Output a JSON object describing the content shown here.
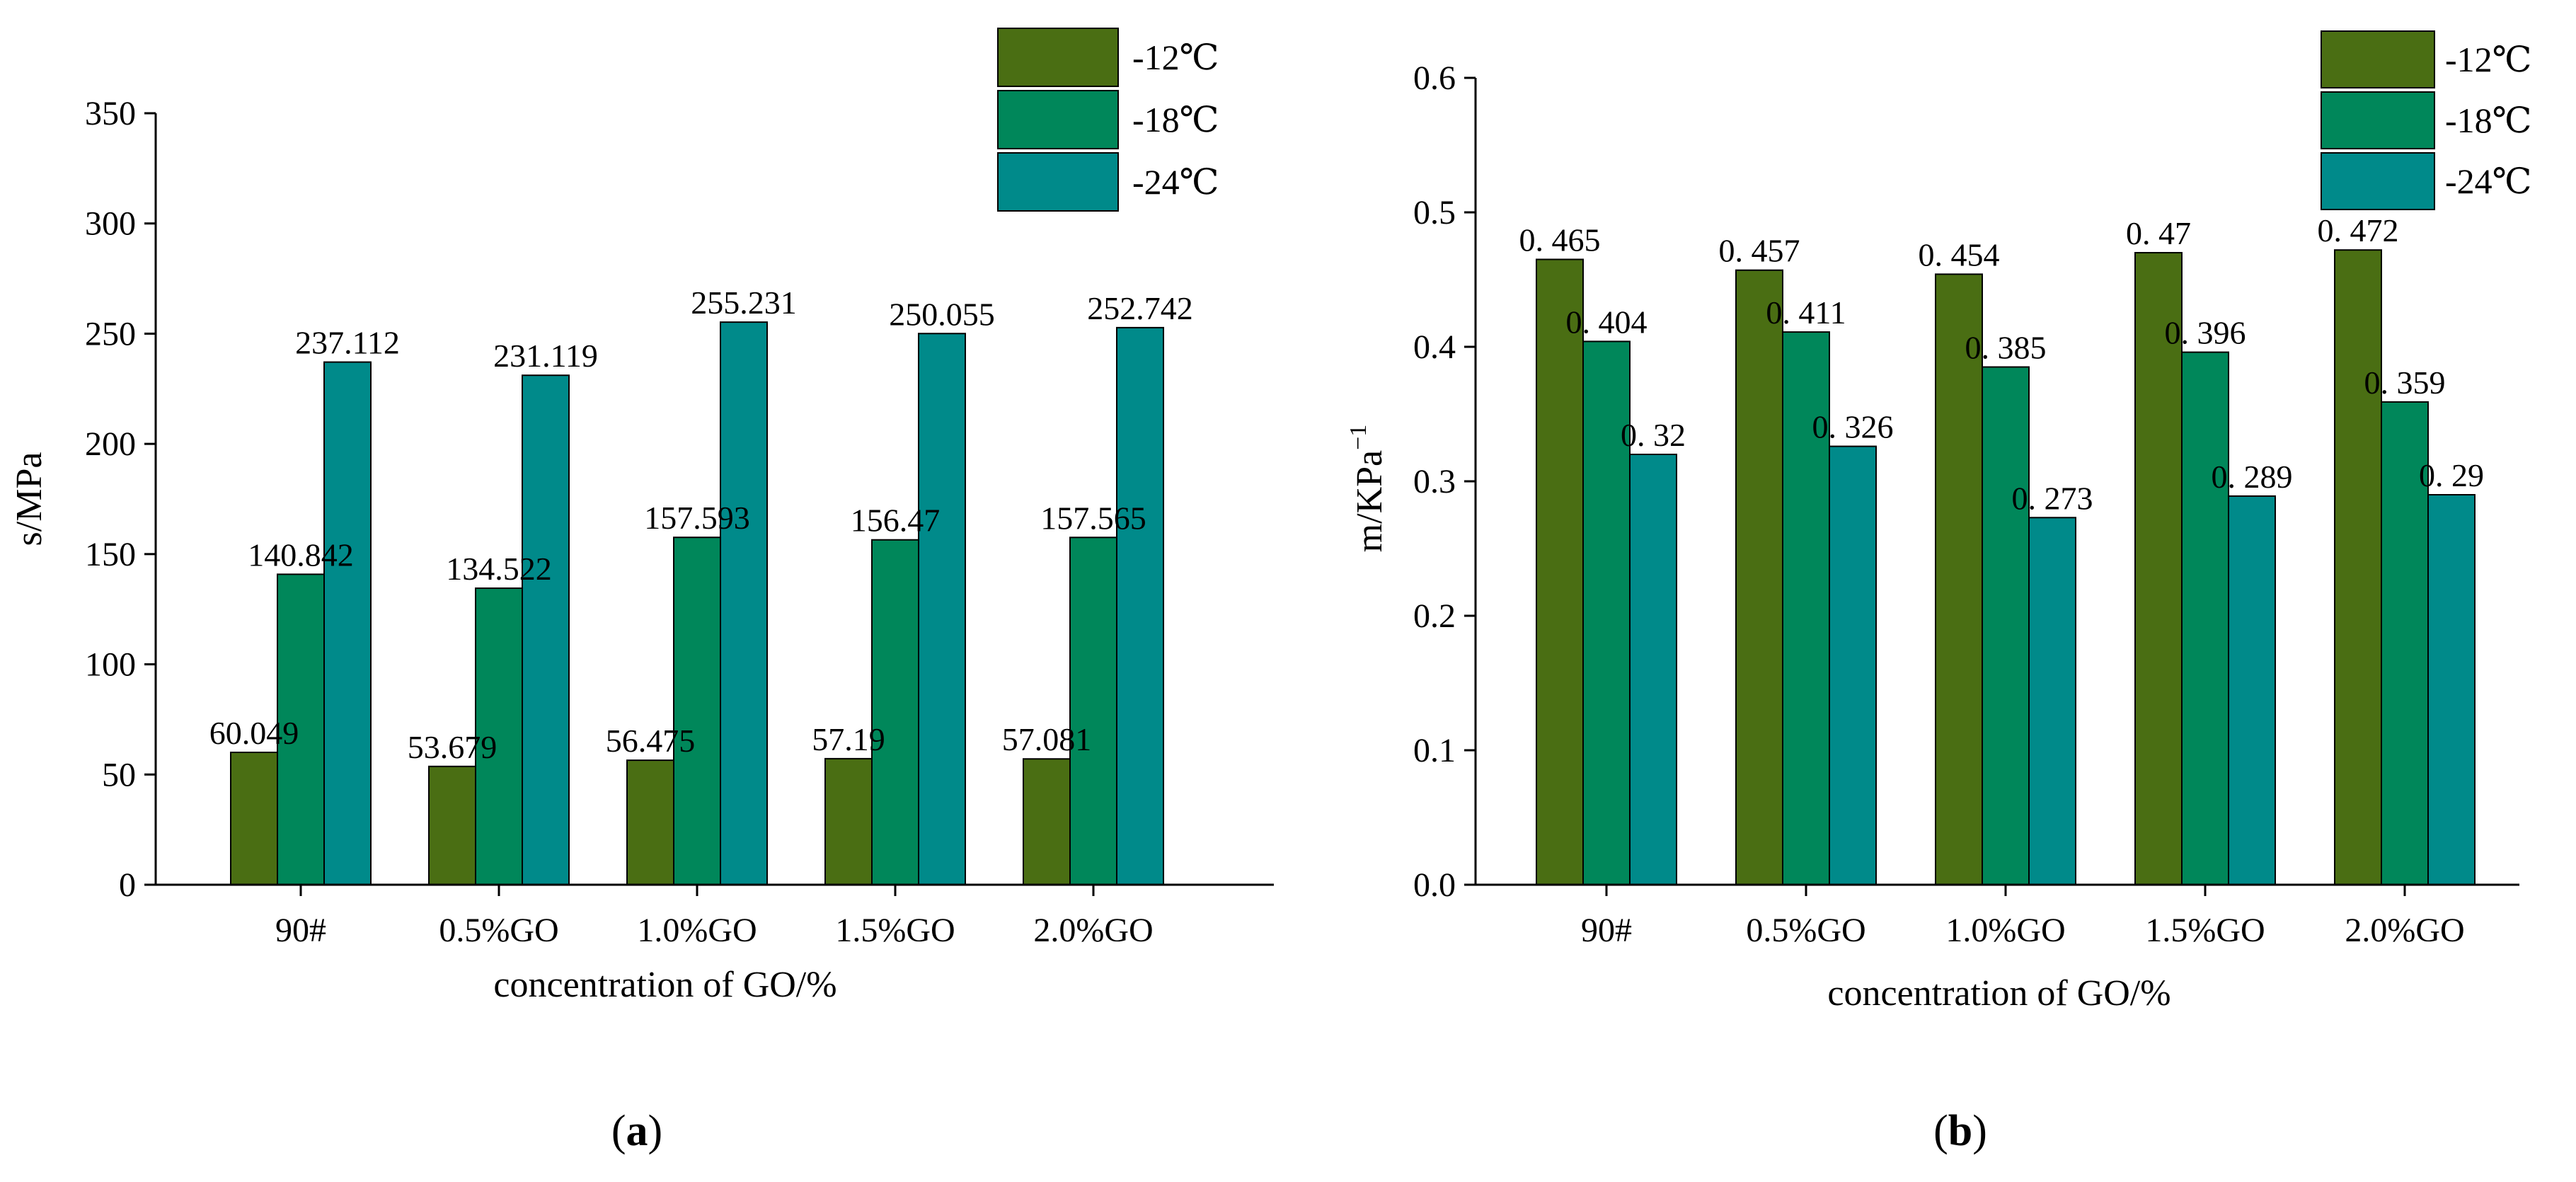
{
  "figure": {
    "panels": [
      {
        "prefix": "(",
        "letter": "a",
        "suffix": ")"
      },
      {
        "prefix": "(",
        "letter": "b",
        "suffix": ")"
      }
    ]
  },
  "chart_data": [
    {
      "type": "bar",
      "panel": "a",
      "title": "",
      "xlabel": "concentration of GO/%",
      "ylabel": "s/MPa",
      "ylim": [
        0,
        350
      ],
      "yticks": [
        "0",
        "50",
        "100",
        "150",
        "200",
        "250",
        "300",
        "350"
      ],
      "categories": [
        "90#",
        "0.5%GO",
        "1.0%GO",
        "1.5%GO",
        "2.0%GO"
      ],
      "legend_position": "top-right",
      "series": [
        {
          "name": "-12℃",
          "color": "#4a6e13",
          "values": [
            60.049,
            53.679,
            56.475,
            57.19,
            57.081
          ],
          "labels": [
            "60.049",
            "53.679",
            "56.475",
            "57.19",
            "57.081"
          ]
        },
        {
          "name": "-18℃",
          "color": "#00875a",
          "values": [
            140.842,
            134.522,
            157.593,
            156.47,
            157.565
          ],
          "labels": [
            "140.842",
            "134.522",
            "157.593",
            "156.47",
            "157.565"
          ]
        },
        {
          "name": "-24℃",
          "color": "#008a8a",
          "values": [
            237.112,
            231.119,
            255.231,
            250.055,
            252.742
          ],
          "labels": [
            "237.112",
            "231.119",
            "255.231",
            "250.055",
            "252.742"
          ]
        }
      ]
    },
    {
      "type": "bar",
      "panel": "b",
      "title": "",
      "xlabel": "concentration of GO/%",
      "ylabel": "m/KPa",
      "ylabel_sup": "−1",
      "ylim": [
        0,
        0.6
      ],
      "yticks": [
        "0.0",
        "0.1",
        "0.2",
        "0.3",
        "0.4",
        "0.5",
        "0.6"
      ],
      "categories": [
        "90#",
        "0.5%GO",
        "1.0%GO",
        "1.5%GO",
        "2.0%GO"
      ],
      "legend_position": "top-right",
      "series": [
        {
          "name": "-12℃",
          "color": "#4a6e13",
          "values": [
            0.465,
            0.457,
            0.454,
            0.47,
            0.472
          ],
          "labels": [
            "0. 465",
            "0. 457",
            "0. 454",
            "0. 47",
            "0. 472"
          ]
        },
        {
          "name": "-18℃",
          "color": "#00875a",
          "values": [
            0.404,
            0.411,
            0.385,
            0.396,
            0.359
          ],
          "labels": [
            "0. 404",
            "0. 411",
            "0. 385",
            "0. 396",
            "0. 359"
          ]
        },
        {
          "name": "-24℃",
          "color": "#008a8a",
          "values": [
            0.32,
            0.326,
            0.273,
            0.289,
            0.29
          ],
          "labels": [
            "0. 32",
            "0. 326",
            "0. 273",
            "0. 289",
            "0. 29"
          ]
        }
      ]
    }
  ]
}
